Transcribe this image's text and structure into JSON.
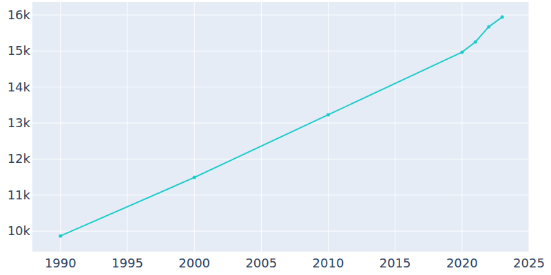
{
  "chart_data": {
    "type": "line",
    "x": [
      1990,
      2000,
      2010,
      2020,
      2021,
      2022,
      2023
    ],
    "values": [
      9866,
      11490,
      13230,
      14968,
      15254,
      15675,
      15943
    ],
    "color": "#1ccbcb",
    "marker": "circle",
    "xlim": [
      1987.9,
      2025
    ],
    "xticks": [
      1990,
      1995,
      2000,
      2005,
      2010,
      2015,
      2020,
      2025
    ],
    "ylim": [
      9430,
      16360
    ],
    "yticks": [
      {
        "value": 10000,
        "label": "10k"
      },
      {
        "value": 11000,
        "label": "11k"
      },
      {
        "value": 12000,
        "label": "12k"
      },
      {
        "value": 13000,
        "label": "13k"
      },
      {
        "value": 14000,
        "label": "14k"
      },
      {
        "value": 15000,
        "label": "15k"
      },
      {
        "value": 16000,
        "label": "16k"
      }
    ],
    "grid": true
  }
}
